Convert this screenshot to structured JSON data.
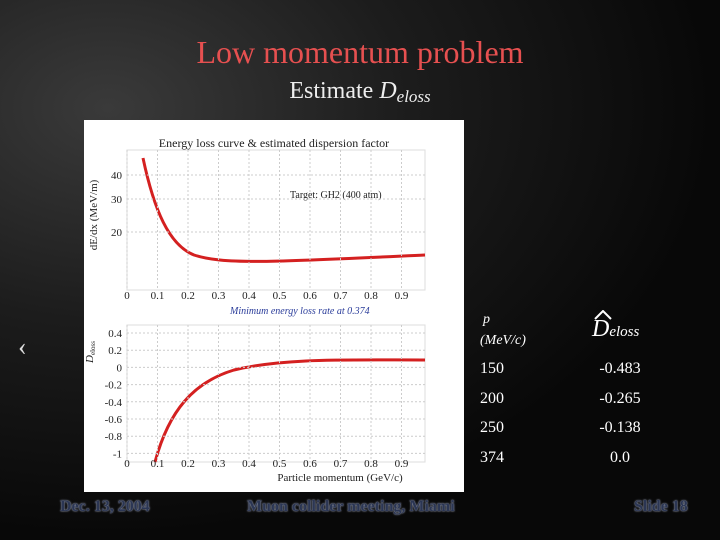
{
  "header": {
    "title": "Low momentum problem",
    "subtitle": "Estimate",
    "symbol": "D",
    "subscript": "eloss"
  },
  "nav_arrow": "‹",
  "figure": {
    "title": "Energy loss curve & estimated dispersion factor",
    "top_plot": {
      "ylabel": "dE/dx (MeV/m)",
      "yticks": [
        "40",
        "30",
        "20"
      ],
      "xticks": [
        "0",
        "0.1",
        "0.2",
        "0.3",
        "0.4",
        "0.5",
        "0.6",
        "0.7",
        "0.8",
        "0.9"
      ],
      "annotation": "Target: GH2 (400 atm)"
    },
    "note": "Minimum energy loss rate at 0.374",
    "bottom_plot": {
      "ylabel_symbol": "D",
      "ylabel_subscript": "eloss",
      "yticks": [
        "0.4",
        "0.2",
        "0",
        "-0.2",
        "-0.4",
        "-0.6",
        "-0.8",
        "-1"
      ],
      "xticks": [
        "0",
        "0.1",
        "0.2",
        "0.3",
        "0.4",
        "0.5",
        "0.6",
        "0.7",
        "0.8",
        "0.9"
      ],
      "xlabel": "Particle momentum (GeV/c)"
    }
  },
  "table": {
    "header": [
      {
        "symbol": "p",
        "unit": "(MeV/c)"
      },
      {
        "symbol": "D",
        "subscript": "eloss"
      }
    ],
    "rows": [
      [
        "150",
        "-0.483"
      ],
      [
        "200",
        "-0.265"
      ],
      [
        "250",
        "-0.138"
      ],
      [
        "374",
        "0.0"
      ]
    ]
  },
  "footer": {
    "date": "Dec. 13, 2004",
    "event": "Muon collider meeting, Miami",
    "slide": "Slide 18"
  }
}
